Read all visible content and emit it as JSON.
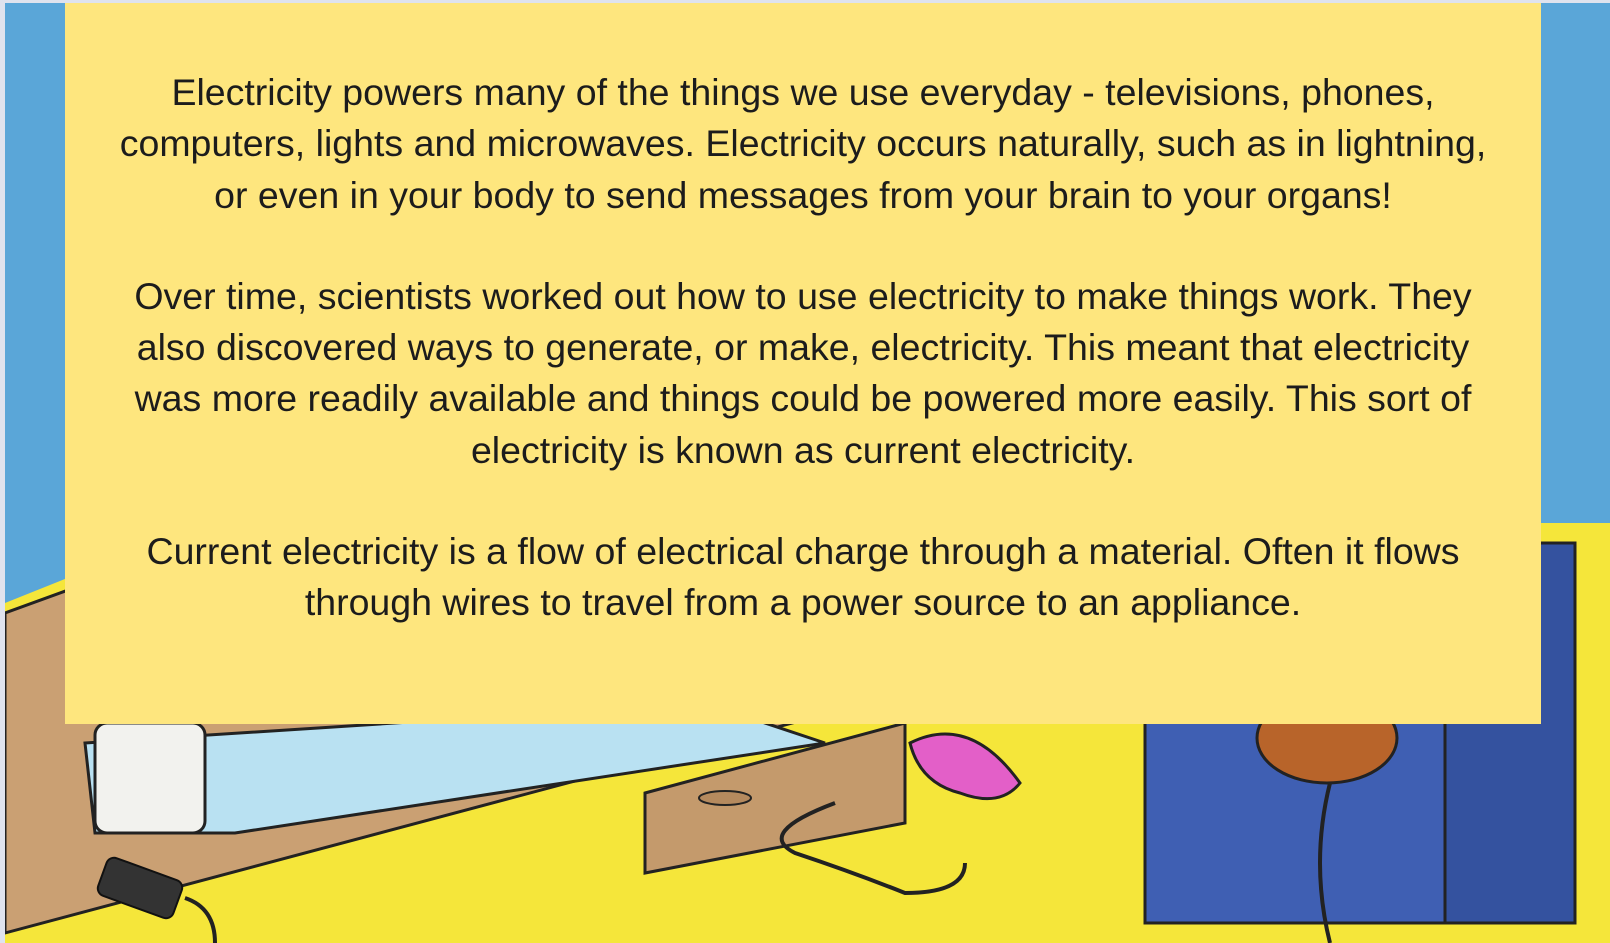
{
  "paragraphs": [
    "Electricity powers many of the things we use everyday - televisions, phones, computers, lights and microwaves. Electricity occurs naturally, such as in lightning, or even in your body to send messages from your brain to your organs!",
    "Over time, scientists worked out how to use electricity to make things work. They also discovered ways to generate, or make, electricity. This meant that electricity was more readily available and things could be powered more easily. This sort of electricity is known as current electricity.",
    "Current electricity is a flow of electrical charge through a material. Often it flows through wires to travel from a power source to an appliance."
  ]
}
